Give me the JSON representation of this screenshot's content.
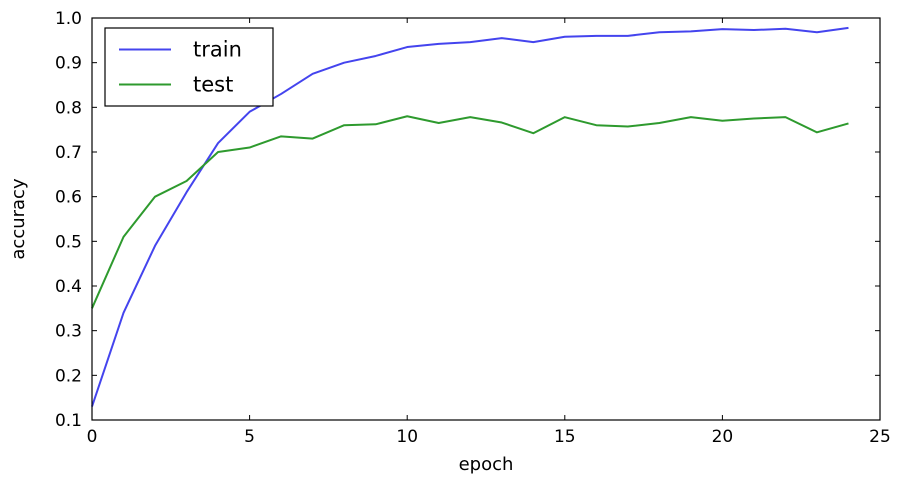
{
  "chart_data": {
    "type": "line",
    "title": "",
    "xlabel": "epoch",
    "ylabel": "accuracy",
    "xlim": [
      0,
      25
    ],
    "ylim": [
      0.1,
      1.0
    ],
    "xticks": [
      "0",
      "5",
      "10",
      "15",
      "20",
      "25"
    ],
    "yticks": [
      "0.1",
      "0.2",
      "0.3",
      "0.4",
      "0.5",
      "0.6",
      "0.7",
      "0.8",
      "0.9",
      "1.0"
    ],
    "grid": false,
    "legend_position": "top-left",
    "x": [
      0,
      1,
      2,
      3,
      4,
      5,
      6,
      7,
      8,
      9,
      10,
      11,
      12,
      13,
      14,
      15,
      16,
      17,
      18,
      19,
      20,
      21,
      22,
      23,
      24
    ],
    "series": [
      {
        "name": "train",
        "color": "#4444ee",
        "values": [
          0.13,
          0.34,
          0.49,
          0.61,
          0.72,
          0.79,
          0.83,
          0.875,
          0.9,
          0.915,
          0.935,
          0.942,
          0.946,
          0.955,
          0.946,
          0.958,
          0.96,
          0.96,
          0.968,
          0.97,
          0.975,
          0.973,
          0.976,
          0.968,
          0.978
        ]
      },
      {
        "name": "test",
        "color": "#2e9a2e",
        "values": [
          0.35,
          0.51,
          0.6,
          0.635,
          0.7,
          0.71,
          0.735,
          0.73,
          0.76,
          0.762,
          0.78,
          0.765,
          0.778,
          0.766,
          0.742,
          0.778,
          0.76,
          0.757,
          0.765,
          0.778,
          0.77,
          0.775,
          0.778,
          0.744,
          0.764
        ]
      }
    ]
  }
}
